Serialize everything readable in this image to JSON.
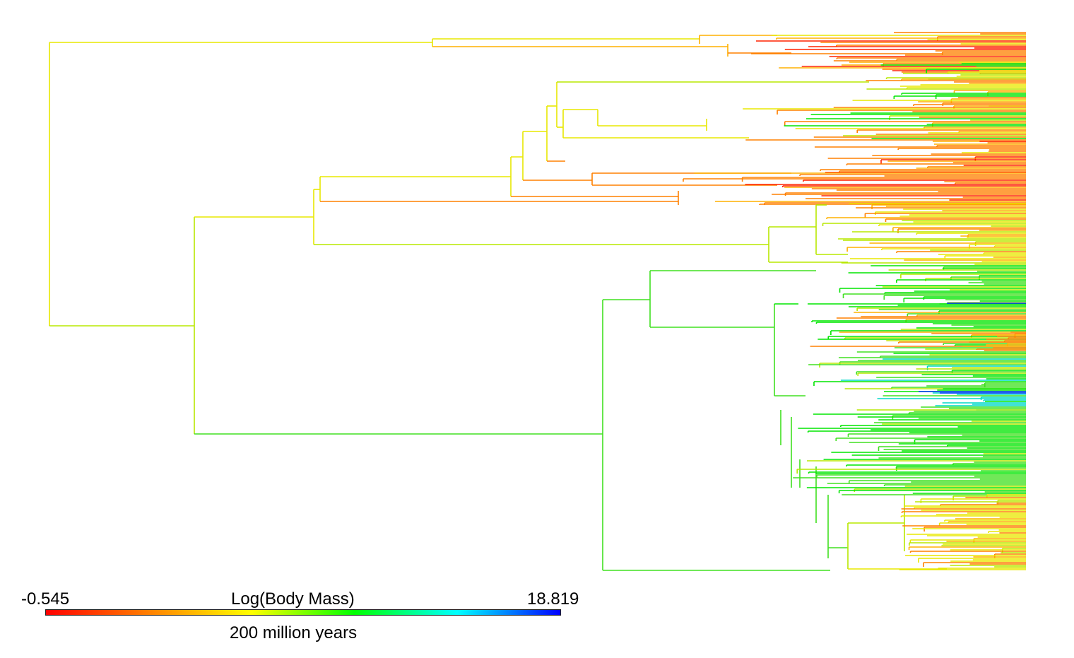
{
  "legend": {
    "min_value": "-0.545",
    "max_value": "18.819",
    "title": "Log(Body Mass)",
    "scale_text": "200 million years",
    "gradient_colors": [
      "#ff0000",
      "#ff7f00",
      "#ffff00",
      "#00ff00",
      "#00ffff",
      "#0000ff"
    ]
  },
  "tree": {
    "colors": {
      "red": "#ff2200",
      "orange": "#ff8000",
      "amber": "#ffb000",
      "yellow": "#e8e800",
      "yellow_green": "#b8e800",
      "green": "#40e020",
      "bright_green": "#00e600",
      "cyan": "#00d8c8",
      "blue": "#0030ff"
    }
  }
}
